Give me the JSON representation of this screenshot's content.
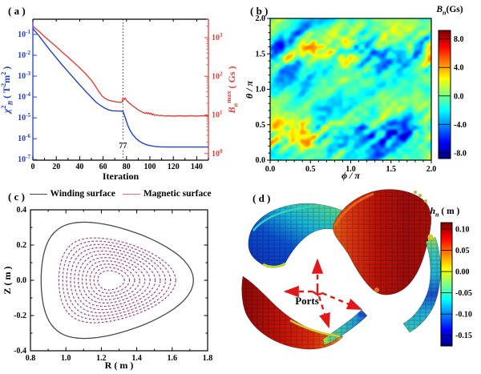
{
  "figure": {
    "background": "#ffffff"
  },
  "panels": {
    "a_label": "( a )",
    "b_label": "( b )",
    "c_label": "( c )",
    "d_label": "( d )"
  },
  "chart_data": [
    {
      "panel": "a",
      "panel_label": "( a )",
      "type": "line",
      "xlabel": "Iteration",
      "xlim": [
        0,
        150
      ],
      "xticks": [
        0,
        20,
        40,
        60,
        80,
        100,
        120,
        140
      ],
      "x_minor_step": 10,
      "ylabel_left_segments": [
        {
          "t": "χ",
          "i": true
        },
        {
          "t": "2",
          "s": "sup"
        },
        {
          "t": "B",
          "s": "sub",
          "i": true
        },
        {
          "t": " ( T"
        },
        {
          "t": "2",
          "s": "sup"
        },
        {
          "t": "m"
        },
        {
          "t": "2",
          "s": "sup"
        },
        {
          "t": " )"
        }
      ],
      "ylabel_right_segments": [
        {
          "t": "B",
          "i": true
        },
        {
          "t": "n",
          "s": "sub",
          "i": true
        },
        {
          "t": "max",
          "s": "sup"
        },
        {
          "t": " ( Gs )"
        }
      ],
      "ylog_left_range": [
        -7.03,
        -0.27
      ],
      "yticks_left_exp": [
        -1,
        -2,
        -3,
        -4,
        -5,
        -6,
        -7
      ],
      "ylog_right_range": [
        -0.17,
        3.48
      ],
      "yticks_right_exp": [
        0,
        1,
        2,
        3
      ],
      "vline": {
        "x": 77,
        "label": "77"
      },
      "axis_color_left": "#2440c5",
      "axis_color_right": "#e6403a",
      "series": [
        {
          "name": "chi2_B",
          "axis": "left",
          "color": "#2440c5",
          "points": [
            [
              0,
              -0.72
            ],
            [
              5,
              -1.05
            ],
            [
              10,
              -1.42
            ],
            [
              15,
              -1.78
            ],
            [
              20,
              -2.12
            ],
            [
              25,
              -2.46
            ],
            [
              30,
              -2.78
            ],
            [
              35,
              -3.1
            ],
            [
              40,
              -3.42
            ],
            [
              45,
              -3.72
            ],
            [
              50,
              -4.02
            ],
            [
              54,
              -4.25
            ],
            [
              58,
              -4.42
            ],
            [
              62,
              -4.55
            ],
            [
              65,
              -4.62
            ],
            [
              68,
              -4.66
            ],
            [
              72,
              -4.67
            ],
            [
              77,
              -4.68
            ],
            [
              79,
              -5.0
            ],
            [
              81,
              -5.35
            ],
            [
              83,
              -5.6
            ],
            [
              85,
              -5.78
            ],
            [
              88,
              -5.98
            ],
            [
              91,
              -6.12
            ],
            [
              94,
              -6.22
            ],
            [
              97,
              -6.29
            ],
            [
              100,
              -6.33
            ],
            [
              104,
              -6.37
            ],
            [
              108,
              -6.39
            ],
            [
              115,
              -6.4
            ],
            [
              150,
              -6.4
            ]
          ]
        },
        {
          "name": "B_n_max",
          "axis": "right",
          "color": "#e6403a",
          "points": [
            [
              0,
              3.3
            ],
            [
              5,
              3.17
            ],
            [
              10,
              3.03
            ],
            [
              15,
              2.9
            ],
            [
              20,
              2.77
            ],
            [
              25,
              2.63
            ],
            [
              30,
              2.5
            ],
            [
              35,
              2.36
            ],
            [
              40,
              2.22
            ],
            [
              45,
              2.07
            ],
            [
              50,
              1.9
            ],
            [
              53,
              1.77
            ],
            [
              56,
              1.62
            ],
            [
              59,
              1.5
            ],
            [
              62,
              1.42
            ],
            [
              65,
              1.38
            ],
            [
              68,
              1.36
            ],
            [
              71,
              1.34
            ],
            [
              74,
              1.33
            ],
            [
              76,
              1.33
            ],
            [
              77,
              1.44
            ],
            [
              78,
              1.4
            ],
            [
              79,
              1.44
            ],
            [
              80,
              1.38
            ],
            [
              82,
              1.32
            ],
            [
              84,
              1.27
            ],
            [
              86,
              1.22
            ],
            [
              88,
              1.18
            ],
            [
              90,
              1.13
            ],
            [
              92,
              1.1
            ],
            [
              94,
              1.07
            ],
            [
              96,
              1.04
            ],
            [
              97,
              1.07
            ],
            [
              98,
              1.03
            ],
            [
              99,
              1.06
            ],
            [
              100,
              1.02
            ],
            [
              101,
              1.05
            ],
            [
              102,
              1.0
            ],
            [
              103,
              1.03
            ],
            [
              104,
              0.99
            ],
            [
              106,
              1.0
            ],
            [
              108,
              0.98
            ],
            [
              110,
              0.99
            ],
            [
              113,
              0.97
            ],
            [
              116,
              0.98
            ],
            [
              120,
              0.97
            ],
            [
              125,
              0.98
            ],
            [
              130,
              0.97
            ],
            [
              135,
              0.98
            ],
            [
              140,
              0.97
            ],
            [
              145,
              0.98
            ],
            [
              150,
              0.97
            ]
          ]
        }
      ]
    },
    {
      "panel": "b",
      "panel_label": "( b )",
      "type": "heatmap",
      "xlabel": "ϕ / π",
      "ylabel": "θ / π",
      "xlim": [
        0,
        2
      ],
      "ylim": [
        0,
        2
      ],
      "xticks": [
        0.0,
        0.5,
        1.0,
        1.5,
        2.0
      ],
      "xtick_labels": [
        "0.0",
        "0.5",
        "1.0",
        "1.5",
        "2.0"
      ],
      "yticks": [
        0.0,
        0.5,
        1.0,
        1.5,
        2.0
      ],
      "ytick_labels": [
        "0.0",
        "0.5",
        "1.0",
        "1.5",
        "2.0"
      ],
      "minor_step": 0.1,
      "colorbar": {
        "title_segments": [
          {
            "t": "B",
            "i": true
          },
          {
            "t": "n",
            "s": "sub",
            "i": true
          },
          {
            "t": "(Gs)"
          }
        ],
        "ticks": [
          8.0,
          4.0,
          0.0,
          -4.0,
          -8.0
        ],
        "tick_labels": [
          "8.0",
          "4.0",
          "0.0",
          "-4.0",
          "-8.0"
        ],
        "bar_range": [
          9.2,
          -8.8
        ],
        "colormap": "jet"
      },
      "generator": {
        "seed": 7,
        "base": -1.2,
        "amp1": 4.2,
        "amp2": 3.0,
        "amp3": 2.6,
        "pattern": "turquoise background with diagonal streaks of yellow/red and blue running bottom-left to top-right, speckle bands near theta/pi 0.3-0.5 and 1.4-1.7"
      }
    },
    {
      "panel": "c",
      "panel_label": "( c )",
      "type": "line",
      "xlabel": "R ( m )",
      "ylabel": "Z ( m )",
      "xlim": [
        0.8,
        1.8
      ],
      "ylim": [
        -0.4,
        0.4
      ],
      "xticks": [
        0.8,
        1.0,
        1.2,
        1.4,
        1.6,
        1.8
      ],
      "xtick_labels": [
        "0.8",
        "1.0",
        "1.2",
        "1.4",
        "1.6",
        "1.8"
      ],
      "yticks": [
        -0.4,
        -0.2,
        0.0,
        0.2,
        0.4
      ],
      "ytick_labels": [
        "-0.4",
        "-0.2",
        "0.0",
        "0.2",
        "0.4"
      ],
      "minor_step": 0.1,
      "legend": [
        {
          "label": "Winding surface",
          "color": "#4a4a4a"
        },
        {
          "label": "Magnetic surface",
          "color": "#e87070"
        }
      ],
      "winding_surface": {
        "R0": 1.29,
        "a": 0.43,
        "kappa": 0.767,
        "delta": 0.45,
        "color": "#4a4a4a"
      },
      "magnetic_surfaces": {
        "count": 11,
        "innermost": {
          "R0": 1.255,
          "a": 0.075,
          "kappa": 0.73,
          "delta": 0.18
        },
        "outermost": {
          "R0": 1.29,
          "a": 0.33,
          "kappa": 0.73,
          "delta": 0.4
        },
        "dash_color": "#e87070",
        "dot_color": "#3838c0"
      }
    },
    {
      "panel": "d",
      "panel_label": "( d )",
      "type": "3d-surface",
      "annotation": "Ports",
      "arrows_color": "#e01818",
      "colorbar": {
        "title_segments": [
          {
            "t": "h",
            "i": true
          },
          {
            "t": "n",
            "s": "sub",
            "i": true
          },
          {
            "t": " ( m )"
          }
        ],
        "ticks": [
          0.1,
          0.05,
          0.0,
          -0.05,
          -0.1,
          -0.15
        ],
        "tick_labels": [
          "0.10",
          "0.05",
          "0.00",
          "-0.05",
          "-0.10",
          "-0.15"
        ],
        "bar_range": [
          0.115,
          -0.175
        ],
        "colormap": "jet"
      },
      "pieces": [
        {
          "name": "upper-left-saddle",
          "stops": [
            [
              0,
              "#0f2cb4"
            ],
            [
              0.35,
              "#0a50d0"
            ],
            [
              0.58,
              "#18b2d8"
            ],
            [
              0.78,
              "#43cfa2"
            ],
            [
              1,
              "#98dc5a"
            ]
          ],
          "dir": [
            "0%",
            "100%",
            "100%",
            "0%"
          ]
        },
        {
          "name": "upper-right-shell",
          "stops": [
            [
              0,
              "#e06014"
            ],
            [
              0.18,
              "#d93511"
            ],
            [
              0.45,
              "#b81208"
            ],
            [
              0.75,
              "#9c0d0d"
            ],
            [
              1,
              "#a81009"
            ]
          ],
          "dir": [
            "0%",
            "50%",
            "100%",
            "50%"
          ]
        },
        {
          "name": "right-arc",
          "stops": [
            [
              0,
              "#9cd84e"
            ],
            [
              0.15,
              "#40c8b0"
            ],
            [
              0.4,
              "#22b0d8"
            ],
            [
              0.6,
              "#1850cc"
            ],
            [
              0.78,
              "#22a8d8"
            ],
            [
              1,
              "#38c8b8"
            ]
          ],
          "dir": [
            "50%",
            "0%",
            "50%",
            "100%"
          ]
        },
        {
          "name": "lower-left-crescent",
          "stops": [
            [
              0,
              "#8c0a0a"
            ],
            [
              0.4,
              "#c01309"
            ],
            [
              0.7,
              "#dc2c0e"
            ],
            [
              0.9,
              "#e86a16"
            ],
            [
              1,
              "#e8a020"
            ]
          ],
          "dir": [
            "0%",
            "50%",
            "100%",
            "50%"
          ]
        },
        {
          "name": "lower-right-strip",
          "stops": [
            [
              0,
              "#9cd84e"
            ],
            [
              0.4,
              "#38c2b2"
            ],
            [
              0.75,
              "#229ad6"
            ],
            [
              1,
              "#1a49cc"
            ]
          ],
          "dir": [
            "0%",
            "50%",
            "100%",
            "50%"
          ]
        }
      ]
    }
  ]
}
